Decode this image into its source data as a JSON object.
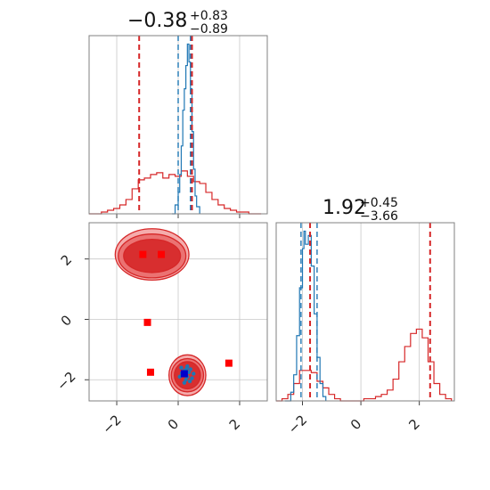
{
  "colors": {
    "red": "#d62728",
    "red_light": "#f4a3a3",
    "red_mid": "#ea6b6b",
    "blue": "#1f77b4",
    "marker_red": "#ff0000",
    "marker_blue": "#0000cc",
    "grid": "#c8c8c8",
    "frame": "#808080"
  },
  "titles": {
    "x_main": "−0.38",
    "x_sup": "+0.83",
    "x_sub": "−0.89",
    "y_main": "1.92",
    "y_sup": "+0.45",
    "y_sub": "−3.66"
  },
  "chart_data": [
    {
      "type": "line",
      "panel": "x-marginal",
      "x_range": [
        -2.9,
        2.9
      ],
      "grid": true,
      "x_ticks": [
        -2,
        0,
        2
      ],
      "series": [
        {
          "color": "red",
          "style": "step",
          "x": [
            -2.9,
            -2.7,
            -2.5,
            -2.3,
            -2.1,
            -1.9,
            -1.7,
            -1.5,
            -1.3,
            -1.1,
            -0.9,
            -0.7,
            -0.5,
            -0.3,
            -0.1,
            0.1,
            0.3,
            0.5,
            0.7,
            0.9,
            1.1,
            1.3,
            1.5,
            1.7,
            1.9,
            2.1,
            2.3,
            2.5,
            2.7
          ],
          "y": [
            0,
            0,
            0.01,
            0.02,
            0.03,
            0.05,
            0.08,
            0.14,
            0.19,
            0.2,
            0.22,
            0.23,
            0.2,
            0.22,
            0.21,
            0.24,
            0.21,
            0.18,
            0.17,
            0.12,
            0.08,
            0.05,
            0.03,
            0.02,
            0.01,
            0.01,
            0,
            0,
            0
          ]
        },
        {
          "color": "blue",
          "style": "step",
          "x": [
            -0.2,
            -0.1,
            0,
            0.05,
            0.1,
            0.15,
            0.2,
            0.25,
            0.3,
            0.35,
            0.4,
            0.45,
            0.5,
            0.55,
            0.6,
            0.7
          ],
          "y": [
            0,
            0.05,
            0.12,
            0.22,
            0.38,
            0.58,
            0.7,
            0.83,
            0.95,
            0.85,
            0.7,
            0.46,
            0.25,
            0.1,
            0.04,
            0
          ]
        }
      ],
      "vlines": [
        {
          "x": -1.27,
          "color": "red"
        },
        {
          "x": 0.45,
          "color": "red"
        },
        {
          "x": 0.0,
          "color": "blue"
        },
        {
          "x": 0.4,
          "color": "blue"
        }
      ]
    },
    {
      "type": "scatter",
      "panel": "joint",
      "x_range": [
        -2.9,
        2.9
      ],
      "y_range": [
        -2.7,
        3.2
      ],
      "grid": true,
      "x_ticks": [
        -2,
        0,
        2
      ],
      "y_ticks": [
        -2,
        0,
        2
      ],
      "contours": [
        {
          "cx": -0.85,
          "cy": 2.15,
          "rx": 2.4,
          "ry": 1.7,
          "fill": "red_light"
        },
        {
          "cx": -0.85,
          "cy": 2.1,
          "rx": 2.2,
          "ry": 1.45,
          "fill": "red_mid"
        },
        {
          "cx": -0.85,
          "cy": 2.1,
          "rx": 1.85,
          "ry": 1.1,
          "fill": "red"
        },
        {
          "cx": 0.3,
          "cy": -1.85,
          "rx": 1.2,
          "ry": 1.35,
          "fill": "red_light"
        },
        {
          "cx": 0.3,
          "cy": -1.85,
          "rx": 1.05,
          "ry": 1.1,
          "fill": "red_mid"
        },
        {
          "cx": 0.3,
          "cy": -1.85,
          "rx": 0.85,
          "ry": 0.9,
          "fill": "red"
        }
      ],
      "blue_points": [
        [
          0.1,
          -1.6
        ],
        [
          0.2,
          -1.7
        ],
        [
          0.3,
          -1.9
        ],
        [
          0.35,
          -1.75
        ],
        [
          0.25,
          -2.0
        ],
        [
          0.15,
          -1.85
        ],
        [
          0.4,
          -1.65
        ],
        [
          0.45,
          -1.95
        ],
        [
          0.3,
          -1.55
        ],
        [
          0.2,
          -2.1
        ],
        [
          0.05,
          -1.9
        ],
        [
          0.5,
          -1.8
        ],
        [
          0.38,
          -2.05
        ],
        [
          0.28,
          -1.62
        ],
        [
          0.12,
          -1.78
        ]
      ],
      "markers_red": [
        [
          -1.15,
          2.15
        ],
        [
          -0.55,
          2.15
        ],
        [
          -1.0,
          -0.1
        ],
        [
          -0.9,
          -1.75
        ],
        [
          1.65,
          -1.45
        ]
      ],
      "marker_blue": [
        0.2,
        -1.8
      ]
    },
    {
      "type": "line",
      "panel": "y-marginal",
      "x_range": [
        -2.9,
        3.2
      ],
      "grid": true,
      "x_ticks": [
        -2,
        0,
        2
      ],
      "series": [
        {
          "color": "red",
          "style": "step",
          "x": [
            -2.9,
            -2.7,
            -2.5,
            -2.3,
            -2.1,
            -1.9,
            -1.7,
            -1.5,
            -1.3,
            -1.1,
            -0.9,
            -0.7,
            -0.5,
            -0.3,
            -0.1,
            0.1,
            0.3,
            0.5,
            0.7,
            0.9,
            1.1,
            1.3,
            1.5,
            1.7,
            1.9,
            2.1,
            2.3,
            2.5,
            2.7,
            2.9,
            3.1
          ],
          "y": [
            0,
            0.01,
            0.03,
            0.08,
            0.14,
            0.14,
            0.13,
            0.09,
            0.06,
            0.03,
            0.01,
            0,
            0,
            0,
            0,
            0.01,
            0.01,
            0.02,
            0.03,
            0.05,
            0.1,
            0.18,
            0.25,
            0.31,
            0.33,
            0.29,
            0.18,
            0.08,
            0.03,
            0.01,
            0
          ]
        },
        {
          "color": "blue",
          "style": "step",
          "x": [
            -2.6,
            -2.4,
            -2.3,
            -2.2,
            -2.1,
            -2.0,
            -1.95,
            -1.9,
            -1.8,
            -1.7,
            -1.6,
            -1.5,
            -1.4,
            -1.3,
            -1.2
          ],
          "y": [
            0,
            0.04,
            0.12,
            0.3,
            0.52,
            0.7,
            0.78,
            0.72,
            0.76,
            0.62,
            0.4,
            0.2,
            0.08,
            0.02,
            0
          ]
        }
      ],
      "vlines": [
        {
          "x": -1.74,
          "color": "red"
        },
        {
          "x": 2.37,
          "color": "red"
        },
        {
          "x": -2.05,
          "color": "blue"
        },
        {
          "x": -1.5,
          "color": "blue"
        }
      ]
    }
  ]
}
